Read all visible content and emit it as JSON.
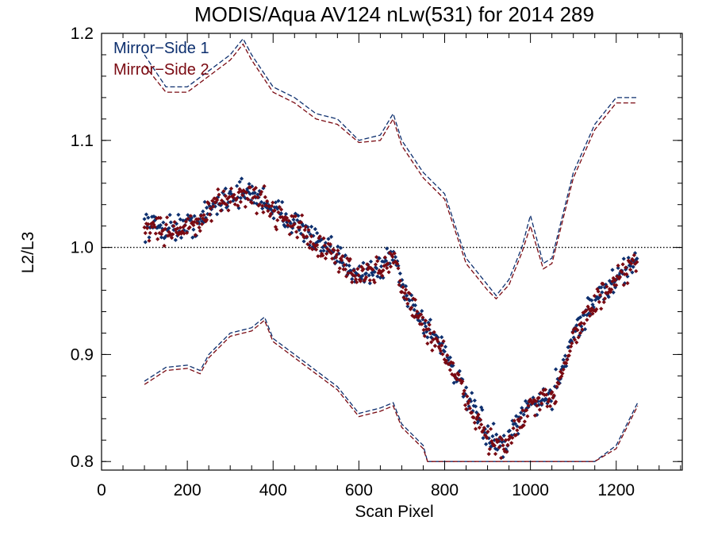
{
  "chart_data": {
    "type": "scatter",
    "title": "MODIS/Aqua AV124 nLw(531) for 2014 289",
    "xlabel": "Scan Pixel",
    "ylabel": "L2/L3",
    "xlim": [
      0,
      1354
    ],
    "ylim": [
      0.792,
      1.2
    ],
    "xticks": [
      0,
      200,
      400,
      600,
      800,
      1000,
      1200
    ],
    "yticks": [
      0.8,
      0.9,
      1.0,
      1.1,
      1.2
    ],
    "ytick_labels": [
      "0.8",
      "0.9",
      "1.0",
      "1.1",
      "1.2"
    ],
    "reference_line": {
      "y": 1.0,
      "style": "dotted"
    },
    "legend_position": "top-left",
    "series": [
      {
        "name": "Mirror−Side 1",
        "color": "#0d2f6e",
        "mean": [
          [
            100,
            1.022
          ],
          [
            150,
            1.018
          ],
          [
            200,
            1.02
          ],
          [
            230,
            1.024
          ],
          [
            250,
            1.035
          ],
          [
            300,
            1.05
          ],
          [
            350,
            1.05
          ],
          [
            380,
            1.045
          ],
          [
            400,
            1.035
          ],
          [
            450,
            1.025
          ],
          [
            500,
            1.005
          ],
          [
            550,
            0.99
          ],
          [
            600,
            0.976
          ],
          [
            650,
            0.98
          ],
          [
            680,
            0.995
          ],
          [
            700,
            0.965
          ],
          [
            750,
            0.93
          ],
          [
            800,
            0.905
          ],
          [
            850,
            0.86
          ],
          [
            900,
            0.825
          ],
          [
            940,
            0.812
          ],
          [
            970,
            0.835
          ],
          [
            1000,
            0.855
          ],
          [
            1050,
            0.86
          ],
          [
            1100,
            0.92
          ],
          [
            1150,
            0.95
          ],
          [
            1200,
            0.97
          ],
          [
            1250,
            0.99
          ]
        ],
        "upper": [
          [
            100,
            1.18
          ],
          [
            150,
            1.15
          ],
          [
            200,
            1.15
          ],
          [
            250,
            1.165
          ],
          [
            300,
            1.18
          ],
          [
            330,
            1.195
          ],
          [
            350,
            1.18
          ],
          [
            400,
            1.15
          ],
          [
            450,
            1.14
          ],
          [
            500,
            1.125
          ],
          [
            550,
            1.12
          ],
          [
            600,
            1.1
          ],
          [
            650,
            1.105
          ],
          [
            680,
            1.125
          ],
          [
            700,
            1.1
          ],
          [
            750,
            1.07
          ],
          [
            800,
            1.05
          ],
          [
            850,
            0.99
          ],
          [
            900,
            0.965
          ],
          [
            920,
            0.955
          ],
          [
            950,
            0.97
          ],
          [
            980,
            1.0
          ],
          [
            1000,
            1.03
          ],
          [
            1030,
            0.985
          ],
          [
            1050,
            0.99
          ],
          [
            1100,
            1.07
          ],
          [
            1150,
            1.115
          ],
          [
            1200,
            1.14
          ],
          [
            1250,
            1.14
          ]
        ],
        "lower": [
          [
            100,
            0.875
          ],
          [
            150,
            0.888
          ],
          [
            200,
            0.89
          ],
          [
            230,
            0.885
          ],
          [
            250,
            0.9
          ],
          [
            300,
            0.92
          ],
          [
            350,
            0.925
          ],
          [
            380,
            0.935
          ],
          [
            400,
            0.915
          ],
          [
            450,
            0.9
          ],
          [
            500,
            0.885
          ],
          [
            550,
            0.87
          ],
          [
            600,
            0.845
          ],
          [
            650,
            0.85
          ],
          [
            680,
            0.855
          ],
          [
            700,
            0.835
          ],
          [
            750,
            0.815
          ],
          [
            760,
            0.8
          ],
          [
            1150,
            0.8
          ],
          [
            1200,
            0.815
          ],
          [
            1250,
            0.855
          ]
        ]
      },
      {
        "name": "Mirror−Side 2",
        "color": "#7a0a12",
        "mean": [
          [
            100,
            1.02
          ],
          [
            150,
            1.016
          ],
          [
            200,
            1.018
          ],
          [
            230,
            1.022
          ],
          [
            250,
            1.033
          ],
          [
            300,
            1.048
          ],
          [
            350,
            1.048
          ],
          [
            380,
            1.043
          ],
          [
            400,
            1.033
          ],
          [
            450,
            1.023
          ],
          [
            500,
            1.003
          ],
          [
            550,
            0.988
          ],
          [
            600,
            0.974
          ],
          [
            650,
            0.978
          ],
          [
            680,
            0.993
          ],
          [
            700,
            0.962
          ],
          [
            750,
            0.927
          ],
          [
            800,
            0.902
          ],
          [
            850,
            0.857
          ],
          [
            900,
            0.822
          ],
          [
            940,
            0.81
          ],
          [
            970,
            0.832
          ],
          [
            1000,
            0.852
          ],
          [
            1050,
            0.857
          ],
          [
            1100,
            0.917
          ],
          [
            1150,
            0.947
          ],
          [
            1200,
            0.967
          ],
          [
            1250,
            0.987
          ]
        ],
        "upper": [
          [
            100,
            1.17
          ],
          [
            150,
            1.145
          ],
          [
            200,
            1.145
          ],
          [
            250,
            1.16
          ],
          [
            300,
            1.175
          ],
          [
            330,
            1.19
          ],
          [
            350,
            1.175
          ],
          [
            400,
            1.145
          ],
          [
            450,
            1.135
          ],
          [
            500,
            1.12
          ],
          [
            550,
            1.115
          ],
          [
            600,
            1.098
          ],
          [
            650,
            1.1
          ],
          [
            680,
            1.12
          ],
          [
            700,
            1.095
          ],
          [
            750,
            1.065
          ],
          [
            800,
            1.045
          ],
          [
            850,
            0.985
          ],
          [
            900,
            0.96
          ],
          [
            920,
            0.952
          ],
          [
            950,
            0.965
          ],
          [
            980,
            0.995
          ],
          [
            1000,
            1.02
          ],
          [
            1030,
            0.98
          ],
          [
            1050,
            0.985
          ],
          [
            1100,
            1.065
          ],
          [
            1150,
            1.11
          ],
          [
            1200,
            1.135
          ],
          [
            1250,
            1.135
          ]
        ],
        "lower": [
          [
            100,
            0.872
          ],
          [
            150,
            0.885
          ],
          [
            200,
            0.887
          ],
          [
            230,
            0.882
          ],
          [
            250,
            0.897
          ],
          [
            300,
            0.917
          ],
          [
            350,
            0.922
          ],
          [
            380,
            0.932
          ],
          [
            400,
            0.912
          ],
          [
            450,
            0.897
          ],
          [
            500,
            0.882
          ],
          [
            550,
            0.867
          ],
          [
            600,
            0.842
          ],
          [
            650,
            0.847
          ],
          [
            680,
            0.852
          ],
          [
            700,
            0.832
          ],
          [
            750,
            0.812
          ],
          [
            760,
            0.8
          ],
          [
            1150,
            0.8
          ],
          [
            1200,
            0.812
          ],
          [
            1250,
            0.852
          ]
        ]
      }
    ]
  }
}
